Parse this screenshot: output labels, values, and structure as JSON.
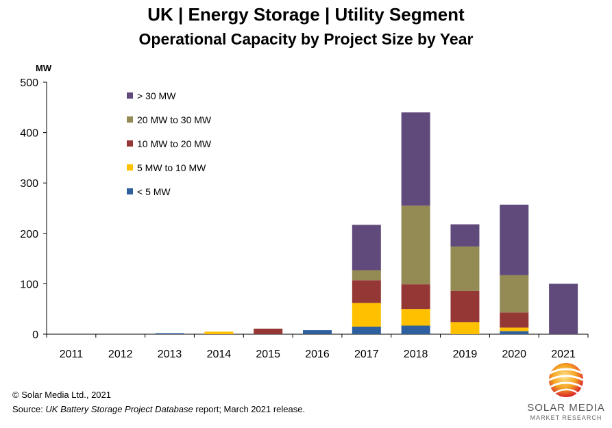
{
  "chart_data": {
    "type": "bar",
    "stacked": true,
    "title": "UK | Energy Storage | Utility Segment",
    "subtitle": "Operational Capacity by Project Size by Year",
    "ylabel": "MW",
    "ylim": [
      0,
      500
    ],
    "yticks": [
      0,
      100,
      200,
      300,
      400,
      500
    ],
    "grid": false,
    "legend_position": "top-left",
    "categories": [
      "2011",
      "2012",
      "2013",
      "2014",
      "2015",
      "2016",
      "2017",
      "2018",
      "2019",
      "2020",
      "2021"
    ],
    "series": [
      {
        "name": "< 5 MW",
        "color": "#2E5F9E",
        "values": [
          0,
          0,
          2,
          0,
          0,
          8,
          15,
          17,
          0,
          6,
          0
        ]
      },
      {
        "name": "5 MW to 10 MW",
        "color": "#FFC000",
        "values": [
          0,
          0,
          0,
          5,
          0,
          0,
          47,
          33,
          24,
          7,
          0
        ]
      },
      {
        "name": "10 MW to 20 MW",
        "color": "#953735",
        "values": [
          0,
          0,
          0,
          0,
          11,
          0,
          45,
          49,
          62,
          30,
          0
        ]
      },
      {
        "name": "20 MW to 30 MW",
        "color": "#948A54",
        "values": [
          0,
          0,
          0,
          0,
          0,
          0,
          20,
          156,
          88,
          74,
          0
        ]
      },
      {
        "name": "> 30 MW",
        "color": "#604A7B",
        "values": [
          0,
          0,
          0,
          0,
          0,
          0,
          90,
          185,
          44,
          140,
          100
        ]
      }
    ],
    "legend_order": [
      "> 30 MW",
      "20 MW to 30 MW",
      "10 MW to 20 MW",
      "5 MW to 10 MW",
      "< 5 MW"
    ]
  },
  "footer": {
    "copyright": "© Solar Media Ltd., 2021",
    "source_prefix": "Source: ",
    "source_title": "UK Battery Storage Project Database",
    "source_suffix": " report; March 2021 release."
  },
  "logo": {
    "brand": "SOLAR MEDIA",
    "tagline": "MARKET RESEARCH"
  }
}
